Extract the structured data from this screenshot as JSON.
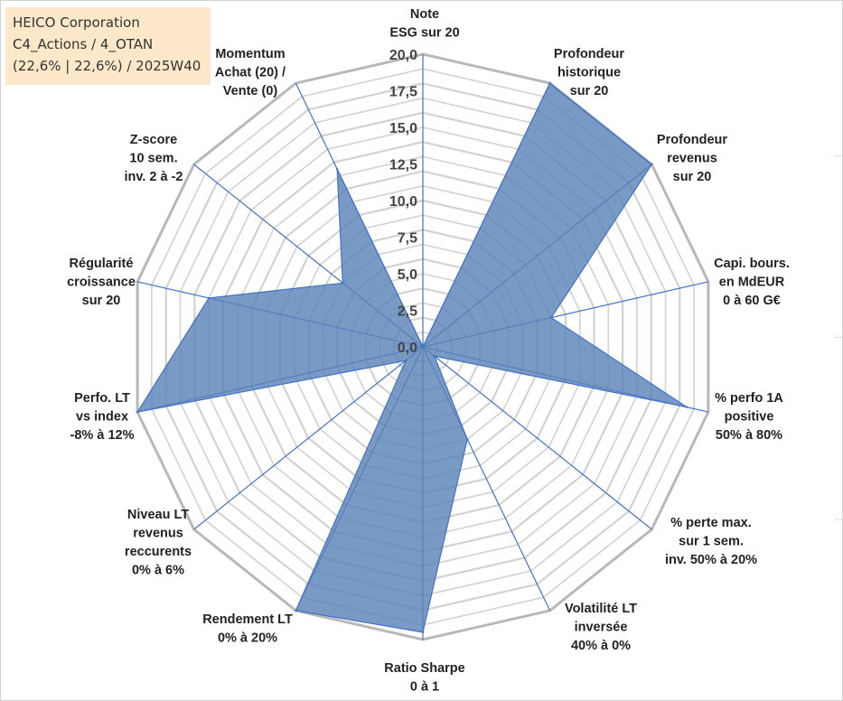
{
  "info": {
    "line1": "HEICO Corporation",
    "line2": "C4_Actions / 4_OTAN",
    "line3": "(22,6% | 22,6%) / 2025W40"
  },
  "colors": {
    "fill": "#5b84b8",
    "stroke": "#4472c4",
    "grid": "#bdbdbd",
    "info_bg": "#fde9c9"
  },
  "chart_data": {
    "type": "radar",
    "axis_range": [
      0,
      20
    ],
    "tick_labels": [
      "0,0",
      "2,5",
      "5,0",
      "7,5",
      "10,0",
      "12,5",
      "15,0",
      "17,5",
      "20,0"
    ],
    "categories": [
      [
        "Note",
        "ESG sur 20"
      ],
      [
        "Profondeur",
        "historique",
        "sur 20"
      ],
      [
        "Profondeur",
        "revenus",
        "sur 20"
      ],
      [
        "Capi. bours.",
        "en MdEUR",
        "0 à 60 G€"
      ],
      [
        "% perfo 1A",
        "positive",
        "50% à 80%"
      ],
      [
        "% perte max.",
        "sur 1 sem.",
        "inv. 50% à 20%"
      ],
      [
        "Volatilité LT",
        "inversée",
        "40% à 0%"
      ],
      [
        "Ratio Sharpe",
        "0 à 1"
      ],
      [
        "Rendement LT",
        "0% à 20%"
      ],
      [
        "Niveau LT",
        "revenus",
        "reccurents",
        "0% à 6%"
      ],
      [
        "Perfo. LT",
        "vs index",
        "-8% à 12%"
      ],
      [
        "Régularité",
        "croissance",
        "sur 20"
      ],
      [
        "Z-score",
        "10 sem.",
        "inv. 2 à -2"
      ],
      [
        "Momentum",
        "Achat (20) /",
        "Vente (0)"
      ]
    ],
    "values": [
      0,
      20,
      20,
      9,
      18.5,
      1,
      7,
      19.5,
      20,
      1.5,
      20,
      15,
      7,
      13.5
    ],
    "grid": true,
    "legend": "none"
  }
}
